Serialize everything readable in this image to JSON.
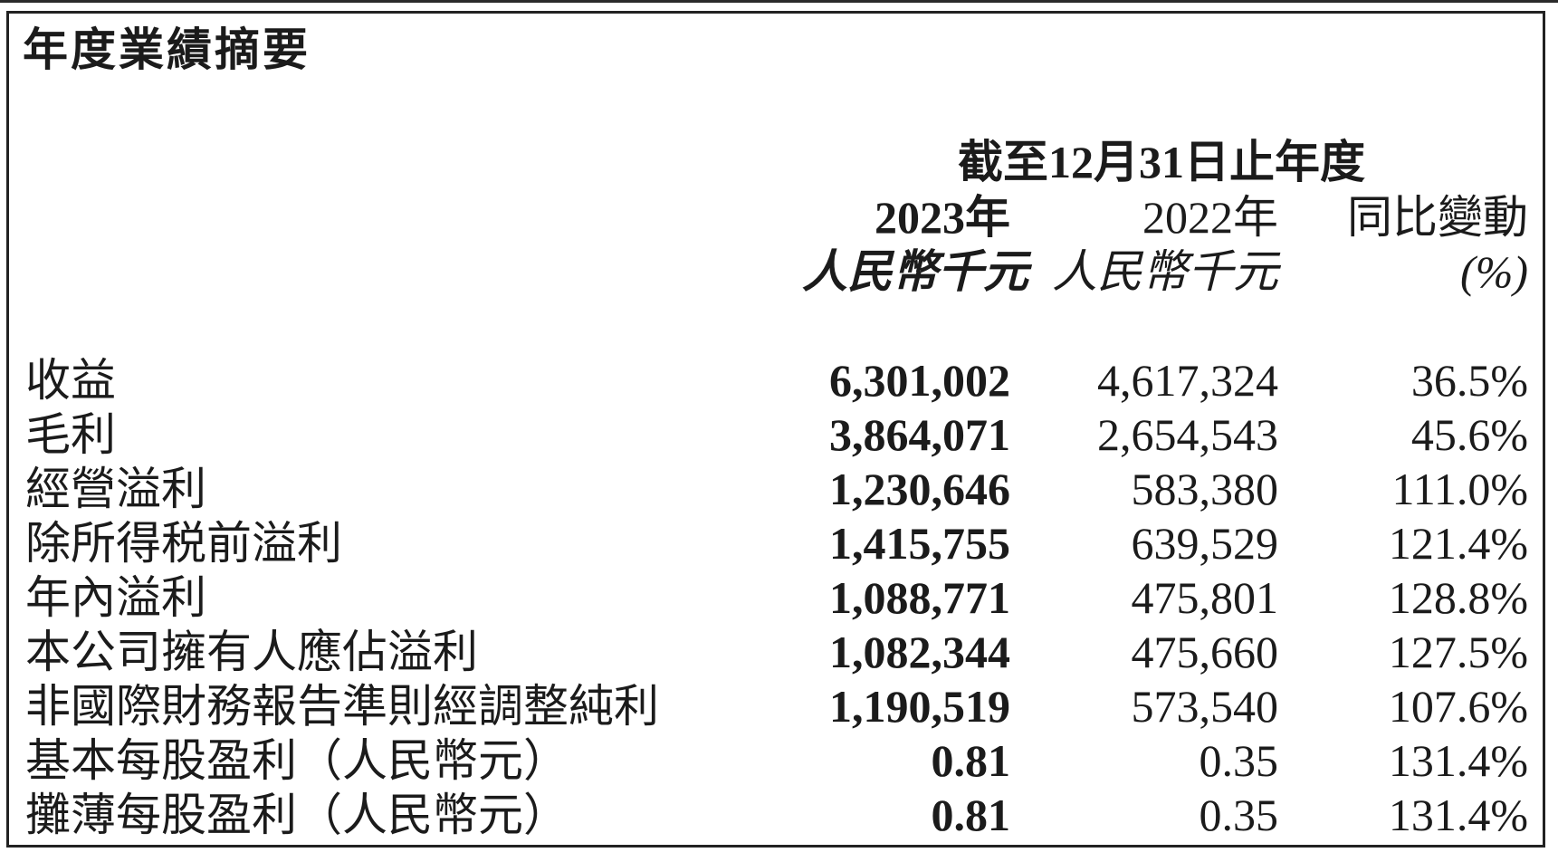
{
  "title": "年度業績摘要",
  "table": {
    "period_header": "截至12月31日止年度",
    "columns": {
      "y2023": {
        "year": "2023年",
        "unit": "人民幣千元"
      },
      "y2022": {
        "year": "2022年",
        "unit": "人民幣千元"
      },
      "change": {
        "label": "同比變動",
        "unit": "(%)"
      }
    },
    "rows": [
      {
        "label": "收益",
        "v2023": "6,301,002",
        "v2022": "4,617,324",
        "change": "36.5%"
      },
      {
        "label": "毛利",
        "v2023": "3,864,071",
        "v2022": "2,654,543",
        "change": "45.6%"
      },
      {
        "label": "經營溢利",
        "v2023": "1,230,646",
        "v2022": "583,380",
        "change": "111.0%"
      },
      {
        "label": "除所得税前溢利",
        "v2023": "1,415,755",
        "v2022": "639,529",
        "change": "121.4%"
      },
      {
        "label": "年內溢利",
        "v2023": "1,088,771",
        "v2022": "475,801",
        "change": "128.8%"
      },
      {
        "label": "本公司擁有人應佔溢利",
        "v2023": "1,082,344",
        "v2022": "475,660",
        "change": "127.5%"
      },
      {
        "label": "非國際財務報告準則經調整純利",
        "v2023": "1,190,519",
        "v2022": "573,540",
        "change": "107.6%"
      },
      {
        "label": "基本每股盈利（人民幣元）",
        "v2023": "0.81",
        "v2022": "0.35",
        "change": "131.4%"
      },
      {
        "label": "攤薄每股盈利（人民幣元）",
        "v2023": "0.81",
        "v2022": "0.35",
        "change": "131.4%"
      }
    ]
  },
  "colors": {
    "text": "#1b1b1b",
    "border": "#222222",
    "background": "#ffffff"
  }
}
